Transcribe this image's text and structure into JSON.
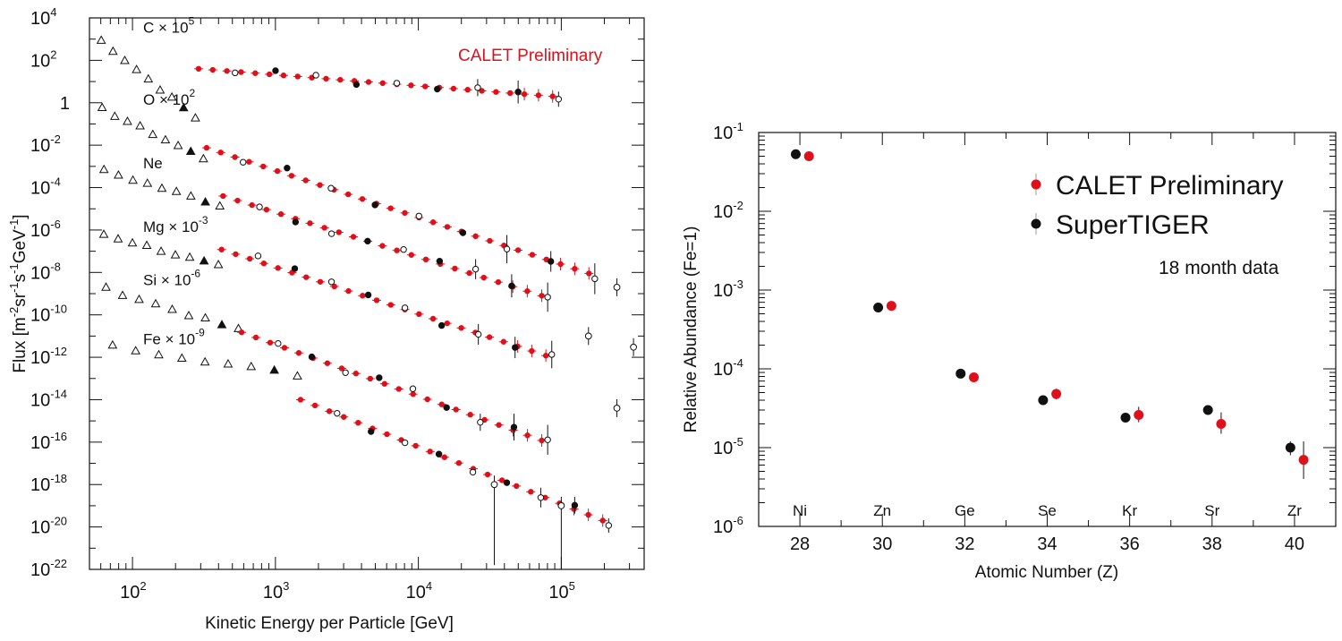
{
  "chart_data": [
    {
      "type": "scatter",
      "xlabel": "Kinetic Energy per Particle [GeV]",
      "ylabel": "Flux [m-2sr-1s-1GeV-1]",
      "xscale": "log",
      "yscale": "log",
      "xlim": [
        50,
        380000
      ],
      "ylim": [
        1e-22,
        10000.0
      ],
      "annotation": "CALET Preliminary",
      "ytick_exponents": [
        4,
        2,
        0,
        -2,
        -4,
        -6,
        -8,
        -10,
        -12,
        -14,
        -16,
        -18,
        -20,
        -22
      ],
      "ytick_one_label": "1",
      "xtick_exponents": [
        2,
        3,
        4,
        5
      ],
      "xtick_base": "10",
      "series": [
        {
          "name": "C",
          "label_base": "C × 10",
          "label_exp": "5",
          "calet_range": [
            290,
            87000
          ],
          "calet_start": 40,
          "calet_end": 2.0,
          "legacy_start": 2500.0,
          "legacy_end": 0.2
        },
        {
          "name": "O",
          "label_base": "O × 10",
          "label_exp": "2",
          "calet_range": [
            330,
            156000
          ],
          "calet_start": 0.0075,
          "calet_end": 9e-09,
          "legacy_start": 1.0,
          "legacy_end": 0.0025
        },
        {
          "name": "Ne",
          "label_base": "Ne",
          "label_exp": "",
          "calet_range": [
            430,
            73000
          ],
          "calet_start": 4e-05,
          "calet_end": 8e-10,
          "legacy_start": 0.001,
          "legacy_end": 1.5e-05
        },
        {
          "name": "Mg",
          "label_base": "Mg × 10",
          "label_exp": "-3",
          "calet_range": [
            420,
            78000
          ],
          "calet_start": 1.2e-07,
          "calet_end": 1.2e-12,
          "legacy_start": 1e-06,
          "legacy_end": 2e-08
        },
        {
          "name": "Si",
          "label_base": "Si × 10",
          "label_exp": "-6",
          "calet_range": [
            580,
            73000
          ],
          "calet_start": 1.5e-11,
          "calet_end": 1.2e-16,
          "legacy_start": 3e-09,
          "legacy_end": 2e-11
        },
        {
          "name": "Fe",
          "label_base": "Fe × 10",
          "label_exp": "-9",
          "calet_range": [
            1500,
            195000
          ],
          "calet_start": 1e-14,
          "calet_end": 2e-20,
          "legacy_start": 5e-12,
          "legacy_end": 1.5e-13
        }
      ],
      "markers": {
        "calet": "red filled circle",
        "other": [
          "open triangle",
          "filled triangle",
          "open circle",
          "filled circle"
        ]
      },
      "grid": false
    },
    {
      "type": "scatter",
      "xlabel": "Atomic Number (Z)",
      "ylabel": "Relative Abundance (Fe=1)",
      "yscale": "log",
      "xlim": [
        27,
        41
      ],
      "ylim": [
        1e-06,
        0.1
      ],
      "xticks": [
        28,
        30,
        32,
        34,
        36,
        38,
        40
      ],
      "ytick_exponents": [
        -1,
        -2,
        -3,
        -4,
        -5,
        -6
      ],
      "ytick_base": "10",
      "element_labels": [
        {
          "z": 28,
          "label": "Ni"
        },
        {
          "z": 30,
          "label": "Zn"
        },
        {
          "z": 32,
          "label": "Ge"
        },
        {
          "z": 34,
          "label": "Se"
        },
        {
          "z": 36,
          "label": "Kr"
        },
        {
          "z": 38,
          "label": "Sr"
        },
        {
          "z": 40,
          "label": "Zr"
        }
      ],
      "series": [
        {
          "name": "CALET Preliminary",
          "color": "#e0101a",
          "points": [
            {
              "z": 28,
              "value": 0.05,
              "err_lo": 0.003,
              "err_hi": 0.003
            },
            {
              "z": 30,
              "value": 0.00063,
              "err_lo": 4e-05,
              "err_hi": 4e-05
            },
            {
              "z": 32,
              "value": 7.8e-05,
              "err_lo": 8e-06,
              "err_hi": 8e-06
            },
            {
              "z": 34,
              "value": 4.8e-05,
              "err_lo": 7e-06,
              "err_hi": 8e-06
            },
            {
              "z": 36,
              "value": 2.6e-05,
              "err_lo": 5e-06,
              "err_hi": 7e-06
            },
            {
              "z": 38,
              "value": 2e-05,
              "err_lo": 5e-06,
              "err_hi": 8e-06
            },
            {
              "z": 40,
              "value": 7e-06,
              "err_lo": 3e-06,
              "err_hi": 5e-06
            }
          ]
        },
        {
          "name": "SuperTIGER",
          "color": "#111111",
          "points": [
            {
              "z": 28,
              "value": 0.053,
              "err_lo": 0.002,
              "err_hi": 0.002
            },
            {
              "z": 30,
              "value": 0.0006,
              "err_lo": 3e-05,
              "err_hi": 3e-05
            },
            {
              "z": 32,
              "value": 8.7e-05,
              "err_lo": 5e-06,
              "err_hi": 5e-06
            },
            {
              "z": 34,
              "value": 4e-05,
              "err_lo": 3e-06,
              "err_hi": 3e-06
            },
            {
              "z": 36,
              "value": 2.4e-05,
              "err_lo": 3e-06,
              "err_hi": 3e-06
            },
            {
              "z": 38,
              "value": 3e-05,
              "err_lo": 3e-06,
              "err_hi": 3e-06
            },
            {
              "z": 40,
              "value": 1e-05,
              "err_lo": 2e-06,
              "err_hi": 2e-06
            }
          ]
        }
      ],
      "note": "18 month data",
      "legend_position": "top-right",
      "grid": false
    }
  ]
}
